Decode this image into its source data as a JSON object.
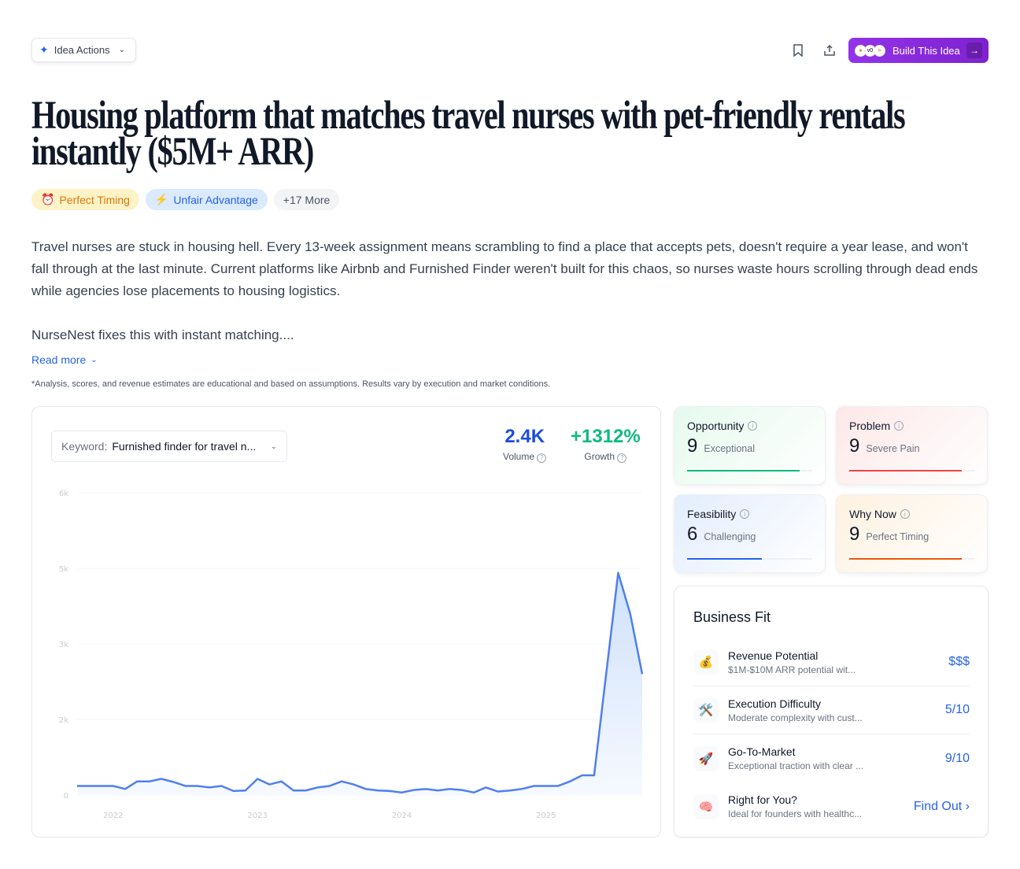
{
  "toolbar": {
    "idea_actions": "Idea Actions",
    "build_label": "Build This Idea",
    "logos": [
      "●",
      "v0",
      "⋗"
    ]
  },
  "title": "Housing platform that matches travel nurses with pet-friendly rentals instantly ($5M+ ARR)",
  "tags": [
    {
      "label": "Perfect Timing",
      "icon": "⏰",
      "bg": "#fef3c7",
      "color": "#d97706"
    },
    {
      "label": "Unfair Advantage",
      "icon": "⚡",
      "bg": "#dbeafe",
      "color": "#2563eb"
    },
    {
      "label": "+17 More",
      "icon": "",
      "bg": "#f3f4f6",
      "color": "#4b5563"
    }
  ],
  "description": "Travel nurses are stuck in housing hell. Every 13-week assignment means scrambling to find a place that accepts pets, doesn't require a year lease, and won't fall through at the last minute. Current platforms like Airbnb and Furnished Finder weren't built for this chaos, so nurses waste hours scrolling through dead ends while agencies lose placements to housing logistics.",
  "description2": "NurseNest fixes this with instant matching....",
  "read_more": "Read more",
  "disclaimer": "*Analysis, scores, and revenue estimates are educational and based on assumptions. Results vary by execution and market conditions.",
  "keyword": {
    "label": "Keyword:",
    "value": "Furnished finder for travel n..."
  },
  "stats": {
    "volume": "2.4K",
    "volume_label": "Volume",
    "growth": "+1312%",
    "growth_label": "Growth"
  },
  "chart_data": {
    "type": "area",
    "x_start": "2021-10",
    "x_interval": "month",
    "x_ticks": [
      "2022",
      "2023",
      "2024",
      "2025"
    ],
    "y_ticks": [
      {
        "value": 0,
        "label": "0"
      },
      {
        "value": 1500,
        "label": "2k"
      },
      {
        "value": 3000,
        "label": "3k"
      },
      {
        "value": 4500,
        "label": "5k"
      },
      {
        "value": 6000,
        "label": "6k"
      }
    ],
    "ylim": [
      0,
      6000
    ],
    "grid": true,
    "color": "#4f7ff0",
    "values": [
      180,
      180,
      180,
      180,
      120,
      270,
      270,
      320,
      260,
      180,
      180,
      150,
      180,
      80,
      90,
      320,
      210,
      270,
      90,
      90,
      150,
      180,
      270,
      210,
      120,
      90,
      80,
      50,
      100,
      120,
      90,
      120,
      100,
      50,
      150,
      70,
      90,
      120,
      180,
      180,
      180,
      270,
      390,
      390,
      2400,
      4410,
      3600,
      2400
    ]
  },
  "scores": [
    {
      "label": "Opportunity",
      "value": "9",
      "desc": "Exceptional",
      "pct": 90,
      "color": "#10b981",
      "bg": "linear-gradient(135deg,#e6faee,#fff)"
    },
    {
      "label": "Problem",
      "value": "9",
      "desc": "Severe Pain",
      "pct": 90,
      "color": "#ef4444",
      "bg": "linear-gradient(135deg,#fde8e8,#fff)"
    },
    {
      "label": "Feasibility",
      "value": "6",
      "desc": "Challenging",
      "pct": 60,
      "color": "#2563eb",
      "bg": "linear-gradient(135deg,#e3edfd,#fff)"
    },
    {
      "label": "Why Now",
      "value": "9",
      "desc": "Perfect Timing",
      "pct": 90,
      "color": "#ea580c",
      "bg": "linear-gradient(135deg,#fef1e0,#fff)"
    }
  ],
  "business_fit": {
    "title": "Business Fit",
    "rows": [
      {
        "icon": "💰",
        "title": "Revenue Potential",
        "sub": "$1M-$10M ARR potential wit...",
        "value": "$$$"
      },
      {
        "icon": "🛠️",
        "title": "Execution Difficulty",
        "sub": "Moderate complexity with cust...",
        "value": "5/10"
      },
      {
        "icon": "🚀",
        "title": "Go-To-Market",
        "sub": "Exceptional traction with clear ...",
        "value": "9/10"
      },
      {
        "icon": "🧠",
        "title": "Right for You?",
        "sub": "Ideal for founders with healthc...",
        "value": "Find Out ›"
      }
    ]
  }
}
